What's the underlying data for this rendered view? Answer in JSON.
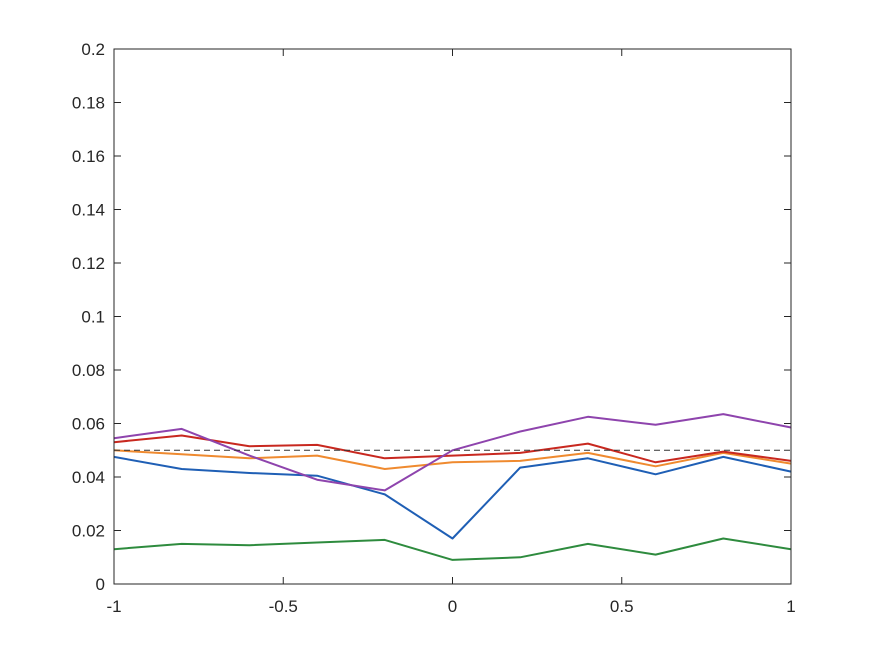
{
  "chart_data": {
    "type": "line",
    "title": "",
    "xlabel": "",
    "ylabel": "",
    "xlim": [
      -1,
      1
    ],
    "ylim": [
      0,
      0.2
    ],
    "grid": false,
    "box": true,
    "x_ticks": [
      -1,
      -0.5,
      0,
      0.5,
      1
    ],
    "x_tick_labels": [
      "-1",
      "-0.5",
      "0",
      "0.5",
      "1"
    ],
    "y_ticks": [
      0,
      0.02,
      0.04,
      0.06,
      0.08,
      0.1,
      0.12,
      0.14,
      0.16,
      0.18,
      0.2
    ],
    "y_tick_labels": [
      "0",
      "0.02",
      "0.04",
      "0.06",
      "0.08",
      "0.1",
      "0.12",
      "0.14",
      "0.16",
      "0.18",
      "0.2"
    ],
    "x": [
      -1,
      -0.8,
      -0.6,
      -0.4,
      -0.2,
      0,
      0.2,
      0.4,
      0.6,
      0.8,
      1
    ],
    "series": [
      {
        "color": "#0072bd",
        "style": "solid",
        "values": [
          0.0475,
          0.043,
          0.0415,
          0.0405,
          0.0335,
          0.017,
          0.0435,
          0.047,
          0.041,
          0.0475,
          0.042
        ]
      },
      {
        "color": "#d95319",
        "style": "solid",
        "values": [
          0.05,
          0.0485,
          0.047,
          0.048,
          0.043,
          0.0455,
          0.046,
          0.049,
          0.044,
          0.049,
          0.045
        ]
      },
      {
        "color": "#edb120",
        "style": "solid",
        "values": [
          0.053,
          0.0555,
          0.0515,
          0.052,
          0.047,
          0.048,
          0.049,
          0.0525,
          0.0455,
          0.0495,
          0.046
        ]
      },
      {
        "color": "#7e2f8e",
        "style": "solid",
        "values": [
          0.0545,
          0.058,
          0.048,
          0.039,
          0.035,
          0.05,
          0.057,
          0.0625,
          0.0595,
          0.0635,
          0.0585
        ]
      },
      {
        "color": "#77ac30",
        "style": "solid",
        "values": [
          0.013,
          0.015,
          0.0145,
          0.0155,
          0.0165,
          0.009,
          0.01,
          0.015,
          0.011,
          0.017,
          0.013
        ]
      },
      {
        "color": "#000000",
        "style": "dashed",
        "values": [
          0.05,
          0.05,
          0.05,
          0.05,
          0.05,
          0.05,
          0.05,
          0.05,
          0.05,
          0.05,
          0.05
        ]
      }
    ],
    "series_colors_rendered": [
      "#1f5fb5",
      "#ef8a2f",
      "#c8281f",
      "#8e44ad",
      "#2e8b3e",
      "#333333"
    ]
  }
}
